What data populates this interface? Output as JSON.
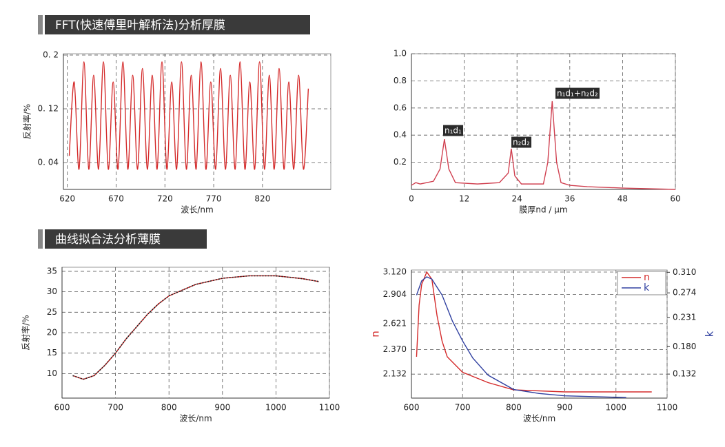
{
  "headers": [
    "FFT(快速傅里叶解析法)分析厚膜",
    "曲线拟合法分析薄膜"
  ],
  "chart_data": [
    {
      "type": "line",
      "xlabel": "波长/nm",
      "ylabel": "反射率/%",
      "smooth": true,
      "grid": true,
      "xlim": [
        616,
        890
      ],
      "xticks": [
        620,
        670,
        720,
        770,
        820
      ],
      "ylim": [
        0,
        0.202
      ],
      "yticks": [
        {
          "value": 0.04,
          "label": "0. 04"
        },
        {
          "value": 0.12,
          "label": "0. 12"
        },
        {
          "value": 0.2,
          "label": "0. 2"
        }
      ],
      "series": [
        {
          "color": "#d42a2a",
          "x": [
            622,
            627,
            632,
            637,
            642,
            647,
            652,
            657,
            662,
            667,
            672,
            677,
            682,
            687,
            692,
            697,
            702,
            707,
            712,
            717,
            722,
            727,
            732,
            737,
            742,
            747,
            752,
            757,
            762,
            767,
            772,
            777,
            782,
            787,
            792,
            797,
            802,
            807,
            812,
            817,
            822,
            827,
            832,
            837,
            842,
            847,
            852,
            857,
            862,
            867
          ],
          "values": [
            0.05,
            0.16,
            0.03,
            0.19,
            0.03,
            0.17,
            0.03,
            0.19,
            0.03,
            0.16,
            0.03,
            0.19,
            0.03,
            0.17,
            0.03,
            0.18,
            0.03,
            0.17,
            0.03,
            0.19,
            0.03,
            0.16,
            0.03,
            0.19,
            0.03,
            0.17,
            0.03,
            0.19,
            0.03,
            0.16,
            0.03,
            0.18,
            0.03,
            0.17,
            0.03,
            0.19,
            0.03,
            0.16,
            0.03,
            0.19,
            0.03,
            0.17,
            0.03,
            0.18,
            0.03,
            0.16,
            0.03,
            0.17,
            0.03,
            0.15
          ]
        }
      ]
    },
    {
      "type": "line",
      "xlabel": "膜厚nd / μm",
      "grid": true,
      "xlim": [
        0,
        60
      ],
      "xticks": [
        0,
        12,
        24,
        36,
        48,
        60
      ],
      "ylim": [
        0,
        1.0
      ],
      "yticks": [
        0.2,
        0.4,
        0.6,
        0.8,
        {
          "value": 1.0,
          "label": "1.0"
        }
      ],
      "annotations": [
        "n₁d₁",
        "n₂d₂",
        "n₁d₁+n₂d₂"
      ],
      "series": [
        {
          "color": "#d04050",
          "x": [
            0,
            1,
            2,
            5,
            6.5,
            7.5,
            8.5,
            10,
            15,
            20,
            22,
            22.7,
            23.5,
            25,
            30,
            31,
            32,
            33,
            34,
            36,
            40,
            48,
            60
          ],
          "values": [
            0.03,
            0.05,
            0.04,
            0.06,
            0.15,
            0.37,
            0.15,
            0.05,
            0.04,
            0.05,
            0.12,
            0.3,
            0.1,
            0.04,
            0.04,
            0.2,
            0.65,
            0.2,
            0.05,
            0.03,
            0.02,
            0.01,
            0.0
          ]
        }
      ]
    },
    {
      "type": "line",
      "xlabel": "波长/nm",
      "ylabel": "反射率/%",
      "grid": true,
      "xlim": [
        600,
        1100
      ],
      "xticks": [
        600,
        700,
        800,
        900,
        1000,
        1100
      ],
      "ylim": [
        4,
        36
      ],
      "yticks": [
        10,
        15,
        20,
        25,
        30,
        35
      ],
      "series": [
        {
          "color": "#d42a2a",
          "x": [
            620,
            640,
            660,
            680,
            700,
            720,
            740,
            760,
            780,
            800,
            850,
            900,
            950,
            1000,
            1050,
            1080
          ],
          "values": [
            9.5,
            8.6,
            9.5,
            12,
            15,
            18.5,
            21.5,
            24.5,
            27,
            29,
            31.8,
            33.3,
            33.9,
            33.9,
            33.2,
            32.5
          ]
        },
        {
          "color": "#222222",
          "line_style": "dotted",
          "x": [
            620,
            640,
            660,
            680,
            700,
            720,
            740,
            760,
            780,
            800,
            850,
            900,
            950,
            1000,
            1050,
            1080
          ],
          "values": [
            9.5,
            8.6,
            9.5,
            12,
            15,
            18.5,
            21.5,
            24.5,
            27,
            29,
            31.8,
            33.3,
            33.9,
            33.9,
            33.2,
            32.5
          ]
        }
      ]
    },
    {
      "type": "line",
      "xlabel": "波长/nm",
      "ylabel": "n",
      "y2label": "k",
      "ylabel_color": "#d42a2a",
      "y2label_color": "#3040a0",
      "grid": true,
      "legend": "upper right",
      "xlim": [
        600,
        1100
      ],
      "xticks": [
        600,
        700,
        800,
        900,
        1000,
        1100
      ],
      "ylim": [
        1.9,
        3.14
      ],
      "yticks": [
        2.132,
        {
          "value": 2.37,
          "label": "2.370"
        },
        2.621,
        2.904,
        {
          "value": 3.12,
          "label": "3.120"
        }
      ],
      "y2lim": [
        0.09,
        0.314
      ],
      "y2ticks": [
        0.132,
        {
          "value": 0.18,
          "label": "0.180"
        },
        0.231,
        0.274,
        {
          "value": 0.31,
          "label": "0.310"
        }
      ],
      "series": [
        {
          "name": "n",
          "color": "#d42a2a",
          "x": [
            610,
            615,
            620,
            630,
            640,
            650,
            660,
            670,
            700,
            750,
            800,
            900,
            1000,
            1070
          ],
          "values": [
            2.3,
            2.8,
            3.0,
            3.12,
            3.05,
            2.7,
            2.45,
            2.3,
            2.15,
            2.05,
            1.98,
            1.96,
            1.96,
            1.96
          ]
        },
        {
          "name": "k",
          "color": "#3040a0",
          "axis": "y2",
          "x": [
            610,
            620,
            630,
            640,
            660,
            680,
            700,
            720,
            750,
            800,
            850,
            900,
            1020
          ],
          "values": [
            0.27,
            0.295,
            0.302,
            0.298,
            0.27,
            0.225,
            0.19,
            0.16,
            0.13,
            0.105,
            0.098,
            0.094,
            0.091
          ]
        }
      ]
    }
  ]
}
